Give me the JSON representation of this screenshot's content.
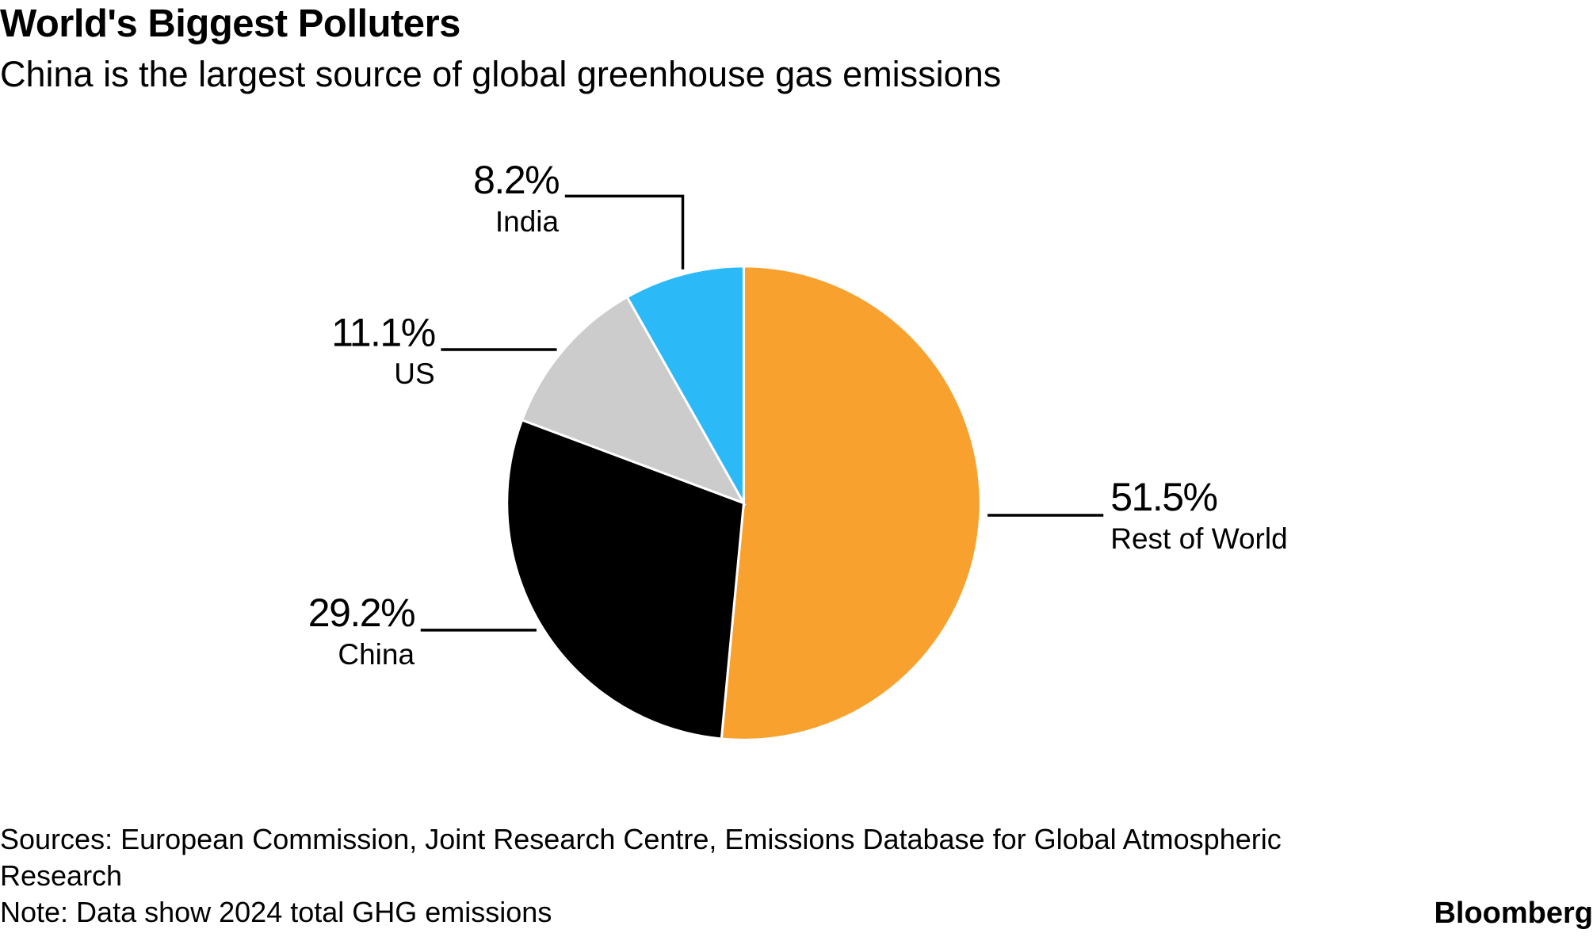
{
  "chart_data": {
    "type": "pie",
    "title": "World's Biggest Polluters",
    "subtitle": "China is the largest source of global greenhouse gas emissions",
    "categories": [
      "Rest of World",
      "China",
      "US",
      "India"
    ],
    "values": [
      51.5,
      29.2,
      11.1,
      8.2
    ],
    "value_labels": [
      "51.5%",
      "29.2%",
      "11.1%",
      "8.2%"
    ],
    "colors": [
      "#f9a12e",
      "#000000",
      "#cccccc",
      "#2bb9f7"
    ],
    "source": "Sources: European Commission, Joint Research Centre, Emissions Database for Global Atmospheric Research",
    "note": "Note: Data show 2024 total GHG emissions",
    "brand": "Bloomberg"
  }
}
